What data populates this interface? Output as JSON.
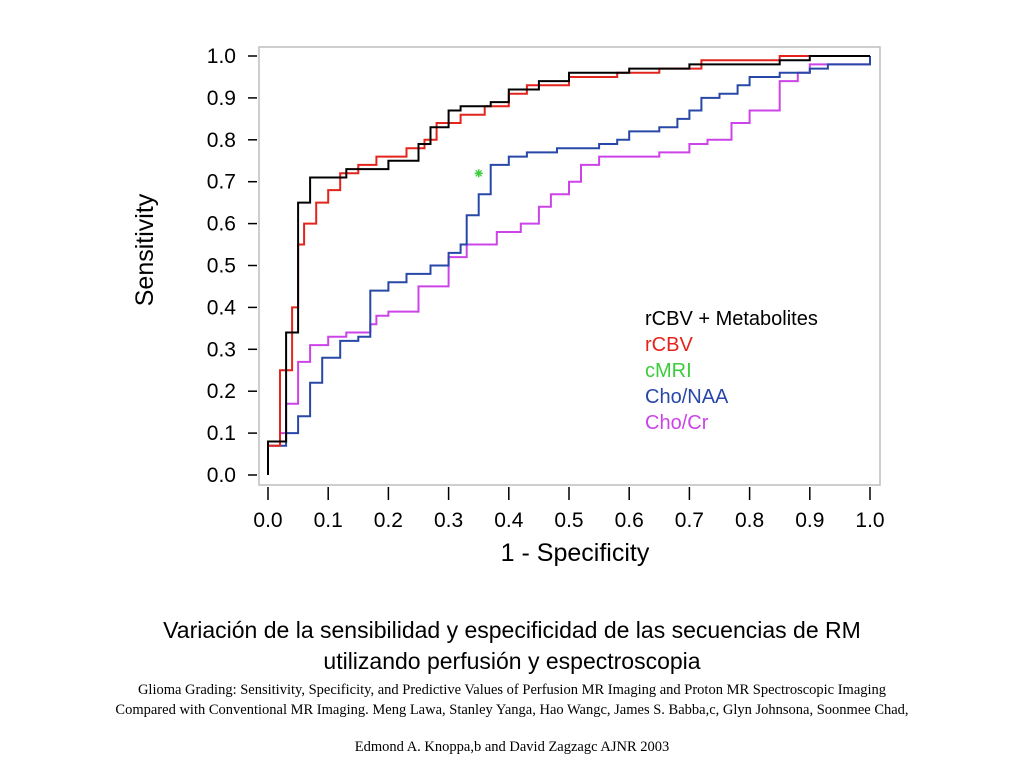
{
  "chart_data": {
    "type": "line",
    "xlabel": "1 - Specificity",
    "ylabel": "Sensitivity",
    "xlim": [
      0.0,
      1.0
    ],
    "ylim": [
      0.0,
      1.0
    ],
    "xticks": [
      "0.0",
      "0.1",
      "0.2",
      "0.3",
      "0.4",
      "0.5",
      "0.6",
      "0.7",
      "0.8",
      "0.9",
      "1.0"
    ],
    "yticks": [
      "0.0",
      "0.1",
      "0.2",
      "0.3",
      "0.4",
      "0.5",
      "0.6",
      "0.7",
      "0.8",
      "0.9",
      "1.0"
    ],
    "grid": false,
    "legend_position": "bottom-right",
    "series": [
      {
        "name": "rCBV + Metabolites",
        "color": "#000000",
        "points": [
          [
            0.0,
            0.0
          ],
          [
            0.0,
            0.08
          ],
          [
            0.03,
            0.08
          ],
          [
            0.03,
            0.34
          ],
          [
            0.05,
            0.34
          ],
          [
            0.05,
            0.65
          ],
          [
            0.07,
            0.65
          ],
          [
            0.07,
            0.71
          ],
          [
            0.13,
            0.71
          ],
          [
            0.13,
            0.73
          ],
          [
            0.2,
            0.73
          ],
          [
            0.2,
            0.75
          ],
          [
            0.25,
            0.75
          ],
          [
            0.25,
            0.79
          ],
          [
            0.27,
            0.79
          ],
          [
            0.27,
            0.83
          ],
          [
            0.3,
            0.83
          ],
          [
            0.3,
            0.87
          ],
          [
            0.32,
            0.87
          ],
          [
            0.32,
            0.88
          ],
          [
            0.37,
            0.88
          ],
          [
            0.37,
            0.89
          ],
          [
            0.4,
            0.89
          ],
          [
            0.4,
            0.92
          ],
          [
            0.45,
            0.92
          ],
          [
            0.45,
            0.94
          ],
          [
            0.5,
            0.94
          ],
          [
            0.5,
            0.96
          ],
          [
            0.6,
            0.96
          ],
          [
            0.6,
            0.97
          ],
          [
            0.7,
            0.97
          ],
          [
            0.7,
            0.98
          ],
          [
            0.85,
            0.98
          ],
          [
            0.85,
            0.99
          ],
          [
            0.9,
            0.99
          ],
          [
            0.9,
            1.0
          ],
          [
            1.0,
            1.0
          ]
        ]
      },
      {
        "name": "rCBV",
        "color": "#e3241c",
        "points": [
          [
            0.0,
            0.0
          ],
          [
            0.0,
            0.07
          ],
          [
            0.02,
            0.07
          ],
          [
            0.02,
            0.25
          ],
          [
            0.04,
            0.25
          ],
          [
            0.04,
            0.4
          ],
          [
            0.05,
            0.4
          ],
          [
            0.05,
            0.55
          ],
          [
            0.06,
            0.55
          ],
          [
            0.06,
            0.6
          ],
          [
            0.08,
            0.6
          ],
          [
            0.08,
            0.65
          ],
          [
            0.1,
            0.65
          ],
          [
            0.1,
            0.68
          ],
          [
            0.12,
            0.68
          ],
          [
            0.12,
            0.72
          ],
          [
            0.15,
            0.72
          ],
          [
            0.15,
            0.74
          ],
          [
            0.18,
            0.74
          ],
          [
            0.18,
            0.76
          ],
          [
            0.23,
            0.76
          ],
          [
            0.23,
            0.78
          ],
          [
            0.26,
            0.78
          ],
          [
            0.26,
            0.8
          ],
          [
            0.28,
            0.8
          ],
          [
            0.28,
            0.84
          ],
          [
            0.32,
            0.84
          ],
          [
            0.32,
            0.86
          ],
          [
            0.36,
            0.86
          ],
          [
            0.36,
            0.88
          ],
          [
            0.4,
            0.88
          ],
          [
            0.4,
            0.91
          ],
          [
            0.43,
            0.91
          ],
          [
            0.43,
            0.93
          ],
          [
            0.5,
            0.93
          ],
          [
            0.5,
            0.95
          ],
          [
            0.58,
            0.95
          ],
          [
            0.58,
            0.96
          ],
          [
            0.65,
            0.96
          ],
          [
            0.65,
            0.97
          ],
          [
            0.72,
            0.97
          ],
          [
            0.72,
            0.99
          ],
          [
            0.85,
            0.99
          ],
          [
            0.85,
            1.0
          ],
          [
            1.0,
            1.0
          ]
        ]
      },
      {
        "name": "cMRI",
        "color": "#3dcc3d",
        "points": [
          [
            0.35,
            0.72
          ]
        ]
      },
      {
        "name": "Cho/NAA",
        "color": "#2848a8",
        "points": [
          [
            0.0,
            0.0
          ],
          [
            0.0,
            0.07
          ],
          [
            0.03,
            0.07
          ],
          [
            0.03,
            0.1
          ],
          [
            0.05,
            0.1
          ],
          [
            0.05,
            0.14
          ],
          [
            0.07,
            0.14
          ],
          [
            0.07,
            0.22
          ],
          [
            0.09,
            0.22
          ],
          [
            0.09,
            0.28
          ],
          [
            0.12,
            0.28
          ],
          [
            0.12,
            0.32
          ],
          [
            0.15,
            0.32
          ],
          [
            0.15,
            0.33
          ],
          [
            0.17,
            0.33
          ],
          [
            0.17,
            0.44
          ],
          [
            0.2,
            0.44
          ],
          [
            0.2,
            0.46
          ],
          [
            0.23,
            0.46
          ],
          [
            0.23,
            0.48
          ],
          [
            0.27,
            0.48
          ],
          [
            0.27,
            0.5
          ],
          [
            0.3,
            0.5
          ],
          [
            0.3,
            0.53
          ],
          [
            0.32,
            0.53
          ],
          [
            0.32,
            0.55
          ],
          [
            0.33,
            0.55
          ],
          [
            0.33,
            0.62
          ],
          [
            0.35,
            0.62
          ],
          [
            0.35,
            0.67
          ],
          [
            0.37,
            0.67
          ],
          [
            0.37,
            0.74
          ],
          [
            0.4,
            0.74
          ],
          [
            0.4,
            0.76
          ],
          [
            0.43,
            0.76
          ],
          [
            0.43,
            0.77
          ],
          [
            0.48,
            0.77
          ],
          [
            0.48,
            0.78
          ],
          [
            0.55,
            0.78
          ],
          [
            0.55,
            0.79
          ],
          [
            0.58,
            0.79
          ],
          [
            0.58,
            0.8
          ],
          [
            0.6,
            0.8
          ],
          [
            0.6,
            0.82
          ],
          [
            0.65,
            0.82
          ],
          [
            0.65,
            0.83
          ],
          [
            0.68,
            0.83
          ],
          [
            0.68,
            0.85
          ],
          [
            0.7,
            0.85
          ],
          [
            0.7,
            0.87
          ],
          [
            0.72,
            0.87
          ],
          [
            0.72,
            0.9
          ],
          [
            0.75,
            0.9
          ],
          [
            0.75,
            0.91
          ],
          [
            0.78,
            0.91
          ],
          [
            0.78,
            0.93
          ],
          [
            0.8,
            0.93
          ],
          [
            0.8,
            0.95
          ],
          [
            0.85,
            0.95
          ],
          [
            0.85,
            0.96
          ],
          [
            0.9,
            0.96
          ],
          [
            0.9,
            0.97
          ],
          [
            0.93,
            0.97
          ],
          [
            0.93,
            0.98
          ],
          [
            1.0,
            0.98
          ],
          [
            1.0,
            1.0
          ]
        ]
      },
      {
        "name": "Cho/Cr",
        "color": "#cc44e8",
        "points": [
          [
            0.0,
            0.0
          ],
          [
            0.0,
            0.08
          ],
          [
            0.02,
            0.08
          ],
          [
            0.02,
            0.1
          ],
          [
            0.03,
            0.1
          ],
          [
            0.03,
            0.17
          ],
          [
            0.05,
            0.17
          ],
          [
            0.05,
            0.27
          ],
          [
            0.07,
            0.27
          ],
          [
            0.07,
            0.31
          ],
          [
            0.1,
            0.31
          ],
          [
            0.1,
            0.33
          ],
          [
            0.13,
            0.33
          ],
          [
            0.13,
            0.34
          ],
          [
            0.17,
            0.34
          ],
          [
            0.17,
            0.36
          ],
          [
            0.18,
            0.36
          ],
          [
            0.18,
            0.38
          ],
          [
            0.2,
            0.38
          ],
          [
            0.2,
            0.39
          ],
          [
            0.25,
            0.39
          ],
          [
            0.25,
            0.45
          ],
          [
            0.3,
            0.45
          ],
          [
            0.3,
            0.52
          ],
          [
            0.33,
            0.52
          ],
          [
            0.33,
            0.55
          ],
          [
            0.38,
            0.55
          ],
          [
            0.38,
            0.58
          ],
          [
            0.42,
            0.58
          ],
          [
            0.42,
            0.6
          ],
          [
            0.45,
            0.6
          ],
          [
            0.45,
            0.64
          ],
          [
            0.47,
            0.64
          ],
          [
            0.47,
            0.67
          ],
          [
            0.5,
            0.67
          ],
          [
            0.5,
            0.7
          ],
          [
            0.52,
            0.7
          ],
          [
            0.52,
            0.74
          ],
          [
            0.55,
            0.74
          ],
          [
            0.55,
            0.76
          ],
          [
            0.65,
            0.76
          ],
          [
            0.65,
            0.77
          ],
          [
            0.7,
            0.77
          ],
          [
            0.7,
            0.79
          ],
          [
            0.73,
            0.79
          ],
          [
            0.73,
            0.8
          ],
          [
            0.77,
            0.8
          ],
          [
            0.77,
            0.84
          ],
          [
            0.8,
            0.84
          ],
          [
            0.8,
            0.87
          ],
          [
            0.85,
            0.87
          ],
          [
            0.85,
            0.94
          ],
          [
            0.88,
            0.94
          ],
          [
            0.88,
            0.96
          ],
          [
            0.9,
            0.96
          ],
          [
            0.9,
            0.98
          ],
          [
            1.0,
            0.98
          ],
          [
            1.0,
            1.0
          ]
        ]
      }
    ]
  },
  "caption": {
    "title_line1": "Variación de la sensibilidad y especificidad de las secuencias de RM",
    "title_line2": "utilizando perfusión y espectroscopia",
    "ref_line1": "Glioma Grading: Sensitivity, Specificity, and Predictive Values of Perfusion MR Imaging and Proton MR Spectroscopic Imaging",
    "ref_line2": "Compared with Conventional MR Imaging. Meng Lawa, Stanley Yanga, Hao Wangc, James S. Babba,c, Glyn Johnsona, Soonmee Chad,",
    "ref_line3": "Edmond A. Knoppa,b and David Zagzagc   AJNR 2003"
  }
}
